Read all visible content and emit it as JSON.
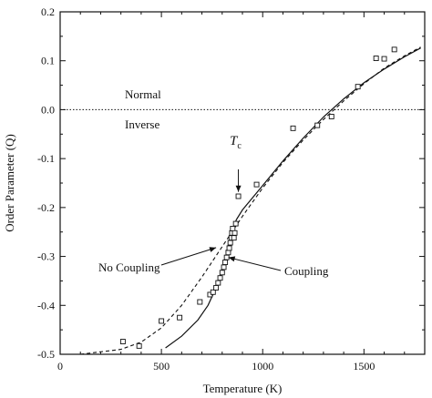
{
  "chart_data": {
    "type": "scatter",
    "xlabel": "Temperature (K)",
    "ylabel": "Order Parameter (Q)",
    "xlim": [
      0,
      1800
    ],
    "ylim": [
      -0.5,
      0.2
    ],
    "x_ticks": [
      0,
      500,
      1000,
      1500
    ],
    "x_tick_labels": [
      "0",
      "500",
      "1000",
      "1500"
    ],
    "y_ticks": [
      -0.5,
      -0.4,
      -0.3,
      -0.2,
      -0.1,
      0.0,
      0.1,
      0.2
    ],
    "y_tick_labels": [
      "-0.5",
      "-0.4",
      "-0.3",
      "-0.2",
      "-0.1",
      "0.0",
      "0.1",
      "0.2"
    ],
    "grid": false,
    "reference_line": {
      "y": 0.0,
      "style": "dotted"
    },
    "region_labels": {
      "above": "Normal",
      "below": "Inverse"
    },
    "tc_label": {
      "main": "T",
      "sub": "c",
      "x": 880,
      "arrow_from_y": -0.122,
      "arrow_to_y": -0.168
    },
    "series": [
      {
        "style": "markers",
        "marker": "open-square",
        "x": [
          310,
          390,
          500,
          590,
          690,
          740,
          755,
          770,
          780,
          790,
          800,
          808,
          815,
          822,
          830,
          835,
          840,
          845,
          848,
          852,
          858,
          862,
          867,
          880,
          970,
          1150,
          1270,
          1340,
          1470,
          1560,
          1600,
          1650
        ],
        "y": [
          -0.474,
          -0.483,
          -0.432,
          -0.425,
          -0.393,
          -0.378,
          -0.373,
          -0.364,
          -0.354,
          -0.344,
          -0.333,
          -0.322,
          -0.312,
          -0.302,
          -0.292,
          -0.283,
          -0.272,
          -0.262,
          -0.252,
          -0.243,
          -0.262,
          -0.252,
          -0.233,
          -0.177,
          -0.153,
          -0.038,
          -0.032,
          -0.014,
          0.047,
          0.105,
          0.104,
          0.123
        ]
      },
      {
        "style": "dashed",
        "x": [
          100,
          300,
          400,
          500,
          600,
          700,
          800,
          900,
          1000,
          1100,
          1200,
          1300,
          1400,
          1500,
          1600,
          1700,
          1780
        ],
        "y": [
          -0.5,
          -0.49,
          -0.475,
          -0.446,
          -0.4,
          -0.342,
          -0.28,
          -0.218,
          -0.16,
          -0.108,
          -0.062,
          -0.02,
          0.018,
          0.053,
          0.085,
          0.11,
          0.128
        ]
      },
      {
        "style": "solid",
        "x": [
          520,
          600,
          680,
          730,
          780,
          820,
          850,
          870,
          900,
          1000,
          1100,
          1200,
          1300,
          1400,
          1500,
          1600,
          1700,
          1780
        ],
        "y": [
          -0.487,
          -0.463,
          -0.43,
          -0.4,
          -0.355,
          -0.3,
          -0.25,
          -0.225,
          -0.205,
          -0.155,
          -0.105,
          -0.058,
          -0.015,
          0.022,
          0.055,
          0.083,
          0.108,
          0.126
        ]
      }
    ],
    "annotations": [
      {
        "text": "No Coupling",
        "arrow_target": [
          770,
          -0.282
        ]
      },
      {
        "text": "Coupling",
        "arrow_target": [
          822,
          -0.302
        ]
      }
    ]
  }
}
